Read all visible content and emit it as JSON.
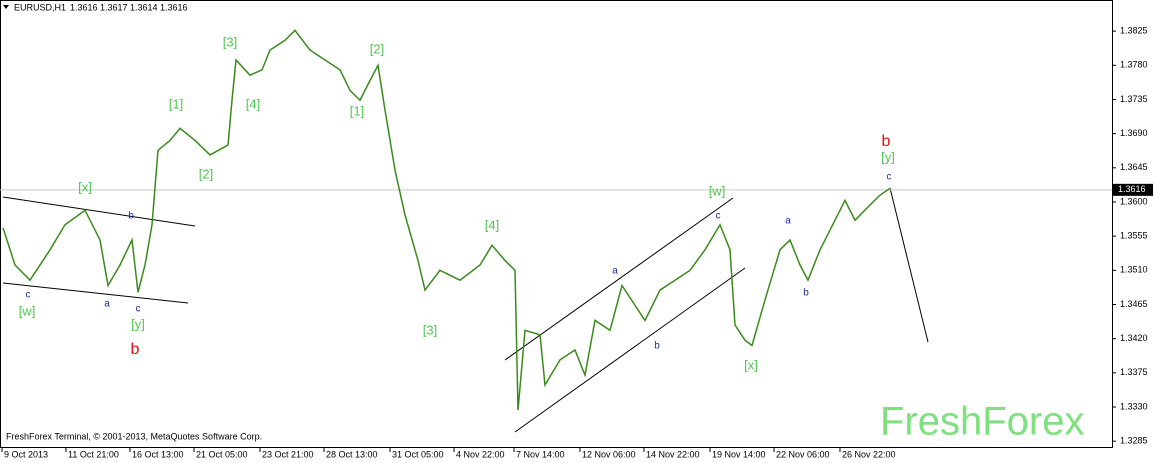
{
  "chart_data": {
    "type": "line",
    "symbol": "EURUSD,H1",
    "ohlc": [
      1.3616,
      1.3617,
      1.3614,
      1.3616
    ],
    "footer": "FreshForex Terminal, © 2001-2013, MetaQuotes Software Corp.",
    "watermark": "FreshForex",
    "x": [
      1.5,
      7.5,
      15,
      25,
      32.5,
      42.5,
      50,
      54,
      60,
      66,
      69,
      72.5,
      76,
      79,
      85,
      90,
      97.5,
      105,
      114,
      116,
      118,
      125,
      131,
      135,
      142.5,
      147.5,
      155,
      162.5,
      170,
      175,
      180,
      185,
      189,
      192.5,
      197.5,
      202.5,
      209,
      212.5,
      220,
      230,
      240,
      246,
      252.5,
      257.5,
      259,
      262.5,
      270,
      272.5,
      280,
      287.5,
      292.5,
      297.5,
      305,
      311,
      317.5,
      322.5,
      330,
      337.5,
      345,
      352.5,
      360,
      365,
      367.5,
      372.5,
      376,
      382.5,
      390,
      395,
      400,
      404,
      410,
      415,
      422.5,
      427.5,
      435,
      440,
      445
    ],
    "series": [
      {
        "color": "#3a8a1a",
        "values": [
          1.3566,
          1.3517,
          1.3497,
          1.3537,
          1.357,
          1.3589,
          1.355,
          1.349,
          1.3517,
          1.355,
          1.3481,
          1.3517,
          1.357,
          1.3668,
          1.3681,
          1.3697,
          1.3681,
          1.3662,
          1.3675,
          1.3734,
          1.3787,
          1.3767,
          1.3774,
          1.38,
          1.3813,
          1.3826,
          1.38,
          1.3787,
          1.3774,
          1.3747,
          1.3734,
          1.376,
          1.378,
          1.3721,
          1.3642,
          1.3583,
          1.3523,
          1.3484,
          1.351,
          1.3497,
          1.3517,
          1.3543,
          1.3523,
          1.351,
          1.3326,
          1.3431,
          1.3425,
          1.3359,
          1.3392,
          1.3405,
          1.3372,
          1.3444,
          1.3431,
          1.349,
          1.3464,
          1.3444,
          1.3484,
          1.3497,
          1.351,
          1.3537,
          1.357,
          1.3537,
          1.3438,
          1.3418,
          1.3411,
          1.3471,
          1.3537,
          1.355,
          1.3517,
          1.3497,
          1.3537,
          1.3563,
          1.3602,
          1.3576,
          1.3596,
          1.3609,
          1.3618
        ]
      }
    ],
    "xlim": [
      0,
      556
    ],
    "ylim": [
      1.3276,
      1.3866
    ],
    "yticks": [
      1.3825,
      {
        "value": 1.378,
        "label": "1.3780"
      },
      1.3735,
      {
        "value": 1.369,
        "label": "1.3690"
      },
      1.3645,
      {
        "value": 1.36,
        "label": "1.3600"
      },
      1.3555,
      {
        "value": 1.351,
        "label": "1.3510"
      },
      1.3465,
      {
        "value": 1.342,
        "label": "1.3420"
      },
      1.3375,
      {
        "value": 1.333,
        "label": "1.3330"
      },
      1.3285
    ],
    "xticks": [
      {
        "value": 1,
        "label": "9 Oct 2013"
      },
      {
        "value": 33,
        "label": "11 Oct 21:00"
      },
      {
        "value": 65,
        "label": "16 Oct 13:00"
      },
      {
        "value": 97,
        "label": "21 Oct 05:00"
      },
      {
        "value": 130,
        "label": "23 Oct 21:00"
      },
      {
        "value": 162,
        "label": "28 Oct 13:00"
      },
      {
        "value": 195,
        "label": "31 Oct 05:00"
      },
      {
        "value": 227,
        "label": "4 Nov 22:00"
      },
      {
        "value": 257,
        "label": "7 Nov 14:00"
      },
      {
        "value": 290,
        "label": "12 Nov 06:00"
      },
      {
        "value": 322,
        "label": "14 Nov 22:00"
      },
      {
        "value": 355,
        "label": "19 Nov 14:00"
      },
      {
        "value": 387,
        "label": "22 Nov 06:00"
      },
      {
        "value": 420,
        "label": "26 Nov 22:00"
      }
    ],
    "annotations": [
      {
        "text": "[x]",
        "color": "#4fc84f"
      },
      {
        "text": "[w]",
        "color": "#4fc84f"
      },
      {
        "text": "c",
        "color": "#1f2fa0"
      },
      {
        "text": "b",
        "color": "#1f2fa0"
      },
      {
        "text": "a",
        "color": "#1f2fa0"
      },
      {
        "text": "c",
        "color": "#1f2fa0"
      },
      {
        "text": "[y]",
        "color": "#4fc84f"
      },
      {
        "text": "b",
        "color": "#e01010"
      },
      {
        "text": "[1]",
        "color": "#4fc84f"
      },
      {
        "text": "[2]",
        "color": "#4fc84f"
      },
      {
        "text": "[3]",
        "color": "#4fc84f"
      },
      {
        "text": "[4]",
        "color": "#4fc84f"
      },
      {
        "text": "[2]",
        "color": "#4fc84f"
      },
      {
        "text": "[1]",
        "color": "#4fc84f"
      },
      {
        "text": "[3]",
        "color": "#4fc84f"
      },
      {
        "text": "[4]",
        "color": "#4fc84f"
      },
      {
        "text": "[w]",
        "color": "#4fc84f"
      },
      {
        "text": "c",
        "color": "#1f2fa0"
      },
      {
        "text": "a",
        "color": "#1f2fa0"
      },
      {
        "text": "b",
        "color": "#1f2fa0"
      },
      {
        "text": "[x]",
        "color": "#4fc84f"
      },
      {
        "text": "a",
        "color": "#1f2fa0"
      },
      {
        "text": "b",
        "color": "#1f2fa0"
      },
      {
        "text": "b",
        "color": "#e01010"
      },
      {
        "text": "[y]",
        "color": "#4fc84f"
      },
      {
        "text": "c",
        "color": "#1f2fa0"
      }
    ]
  }
}
